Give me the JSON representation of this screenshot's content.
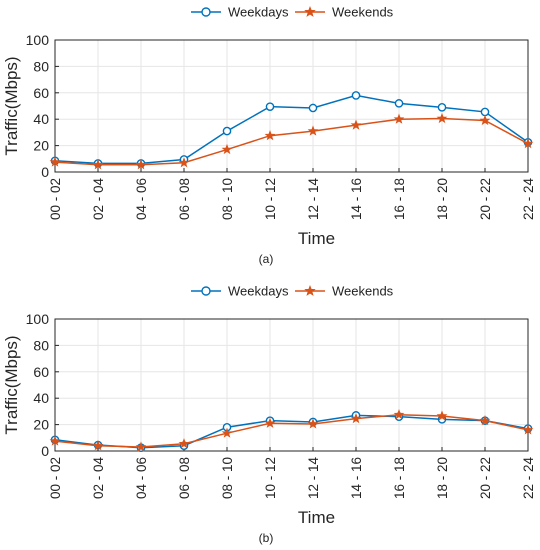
{
  "colors": {
    "weekdays": "#0072BD",
    "weekends": "#D95319",
    "grid": "#e6e6e6",
    "axis": "#262626"
  },
  "chart_data": [
    {
      "type": "line",
      "panel_label": "(a)",
      "xlabel": "Time",
      "ylabel": "Traffic(Mbps)",
      "ylim": [
        0,
        100
      ],
      "yticks": [
        0,
        20,
        40,
        60,
        80,
        100
      ],
      "grid": true,
      "legend_position": "top-center",
      "categories": [
        "00 - 02",
        "02 - 04",
        "04 - 06",
        "06 - 08",
        "08 - 10",
        "10 - 12",
        "12 - 14",
        "14 - 16",
        "16 - 18",
        "18 - 20",
        "20 - 22",
        "22 - 24"
      ],
      "series": [
        {
          "name": "Weekdays",
          "marker": "circle",
          "values": [
            8.5,
            6.5,
            6.5,
            9.5,
            31,
            49.5,
            48.5,
            58,
            52,
            49,
            45.5,
            22.5
          ]
        },
        {
          "name": "Weekends",
          "marker": "star",
          "values": [
            7.5,
            5.5,
            5.5,
            7,
            17,
            27.5,
            31,
            35.5,
            40,
            40.5,
            39,
            21.5
          ]
        }
      ]
    },
    {
      "type": "line",
      "panel_label": "(b)",
      "xlabel": "Time",
      "ylabel": "Traffic(Mbps)",
      "ylim": [
        0,
        100
      ],
      "yticks": [
        0,
        20,
        40,
        60,
        80,
        100
      ],
      "grid": true,
      "legend_position": "top-center",
      "categories": [
        "00 - 02",
        "02 - 04",
        "04 - 06",
        "06 - 08",
        "08 - 10",
        "10 - 12",
        "12 - 14",
        "14 - 16",
        "16 - 18",
        "18 - 20",
        "20 - 22",
        "22 - 24"
      ],
      "series": [
        {
          "name": "Weekdays",
          "marker": "circle",
          "values": [
            8.5,
            4.5,
            2.5,
            4,
            18,
            23,
            22,
            27,
            26,
            24,
            23,
            17
          ]
        },
        {
          "name": "Weekends",
          "marker": "star",
          "values": [
            7.5,
            4,
            3,
            5.5,
            13.5,
            21,
            20.5,
            24.5,
            27.5,
            26.5,
            23,
            16
          ]
        }
      ]
    }
  ]
}
